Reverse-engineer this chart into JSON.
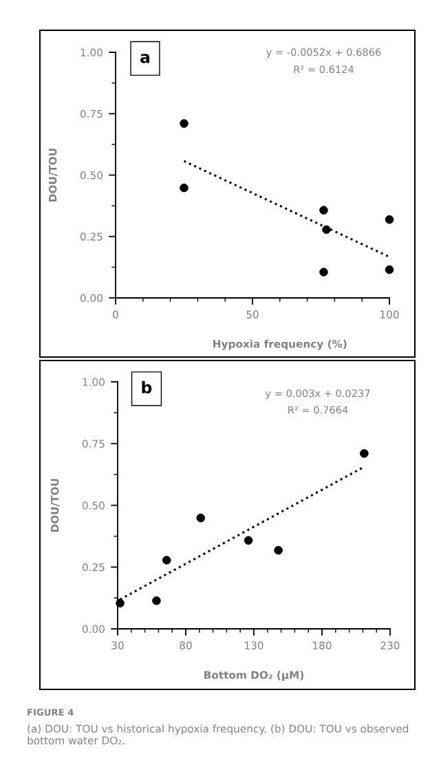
{
  "chart_data": [
    {
      "type": "scatter",
      "xlabel": "Hypoxia frequency (%)",
      "ylabel": "DOU/TOU",
      "xlim": [
        0,
        100
      ],
      "xticks": [
        0,
        50,
        100
      ],
      "ylim": [
        0,
        1
      ],
      "yticks": [
        {
          "value": 0,
          "label": "0.00"
        },
        {
          "value": 0.25,
          "label": "0.25"
        },
        {
          "value": 0.5,
          "label": "0.50"
        },
        {
          "value": 0.75,
          "label": "0.75"
        },
        {
          "value": 1,
          "label": "1.00"
        }
      ],
      "grid": false,
      "legend": false,
      "annotations": [
        "a",
        "y = -0.0052x + 0.6866",
        "R² = 0.6124"
      ],
      "series": [
        {
          "color": "#000000",
          "marker": "circle",
          "x": [
            25,
            25,
            76,
            77,
            76,
            100,
            100
          ],
          "values": [
            0.71,
            0.448,
            0.357,
            0.278,
            0.105,
            0.319,
            0.115
          ]
        },
        {
          "type": "line",
          "color": "#000000",
          "line_style": "dotted",
          "marker": "none",
          "x": [
            25,
            100
          ],
          "values": [
            0.557,
            0.167
          ]
        }
      ]
    },
    {
      "type": "scatter",
      "xlabel": "Bottom DO₂ (µM)",
      "ylabel": "DOU/TOU",
      "xlim": [
        30,
        230
      ],
      "xticks": [
        30,
        80,
        130,
        180,
        230
      ],
      "ylim": [
        0,
        1
      ],
      "yticks": [
        {
          "value": 0,
          "label": "0.00"
        },
        {
          "value": 0.25,
          "label": "0.25"
        },
        {
          "value": 0.5,
          "label": "0.50"
        },
        {
          "value": 0.75,
          "label": "0.75"
        },
        {
          "value": 1,
          "label": "1.00"
        }
      ],
      "grid": false,
      "legend": false,
      "annotations": [
        "b",
        "y = 0.003x + 0.0237",
        "R² = 0.7664",
        "FIGURE 4",
        "(a) DOU: TOU vs historical hypoxia frequency. (b) DOU: TOU vs observed bottom water DO₂."
      ],
      "series": [
        {
          "color": "#000000",
          "marker": "circle",
          "x": [
            31.8,
            58.5,
            66,
            91,
            126,
            148,
            211
          ],
          "values": [
            0.104,
            0.114,
            0.278,
            0.449,
            0.358,
            0.318,
            0.71
          ]
        },
        {
          "type": "line",
          "color": "#000000",
          "line_style": "dotted",
          "marker": "none",
          "x": [
            31.8,
            211
          ],
          "values": [
            0.119,
            0.656
          ]
        }
      ]
    }
  ]
}
